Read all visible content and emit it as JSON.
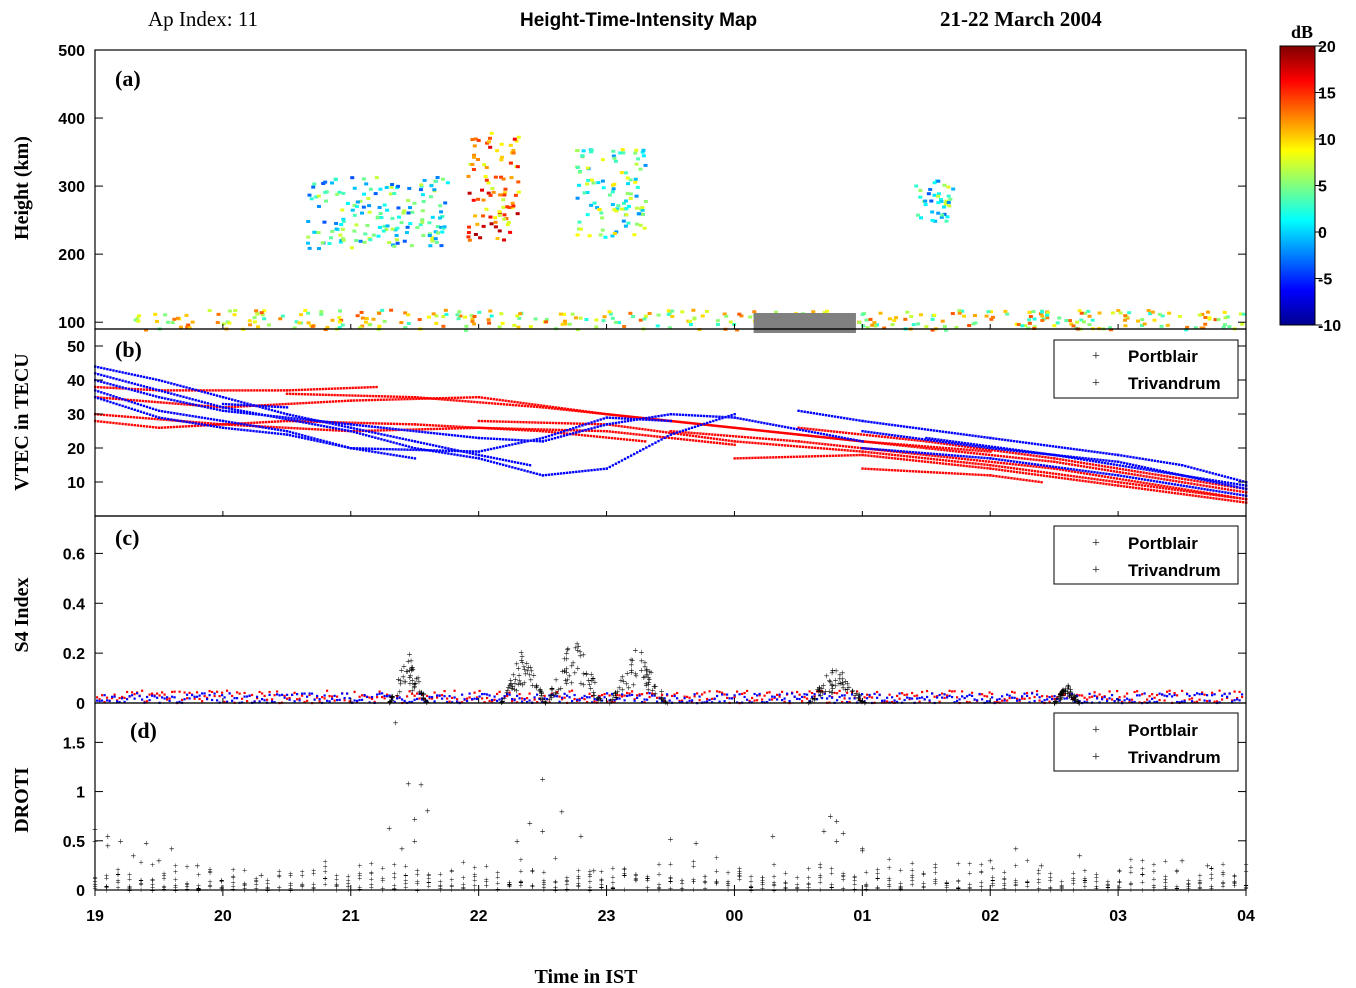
{
  "header": {
    "ap_index": "Ap Index: 11",
    "title": "Height-Time-Intensity Map",
    "date": "21-22 March 2004"
  },
  "xlabel": "Time in IST",
  "colorbar": {
    "unit": "dB",
    "ticks": [
      "20",
      "15",
      "10",
      "5",
      "0",
      "-5",
      "-10"
    ]
  },
  "colors": {
    "portblair": "#ff0000",
    "trivandrum": "#0000ff",
    "data_gap": "#808080"
  },
  "chart_data": [
    {
      "id": "a",
      "panel_label": "(a)",
      "type": "heatmap",
      "ylabel": "Height (km)",
      "ylim": [
        90,
        500
      ],
      "yticks": [
        "500",
        "400",
        "300",
        "200",
        "100"
      ],
      "xticks": [
        "19",
        "20",
        "21",
        "22",
        "23",
        "00",
        "01",
        "02",
        "03",
        "04"
      ],
      "data_gap_hours": [
        0.15,
        0.95
      ],
      "colorscale": {
        "min": -10,
        "max": 20,
        "unit": "dB"
      },
      "blobs": [
        {
          "t_start": 20.65,
          "t_end": 21.75,
          "h_low": 210,
          "h_high": 315,
          "level": 2
        },
        {
          "t_start": 21.9,
          "t_end": 22.3,
          "h_low": 220,
          "h_high": 380,
          "level": 13
        },
        {
          "t_start": 22.75,
          "t_end": 23.3,
          "h_low": 225,
          "h_high": 360,
          "level": 4
        },
        {
          "t_start": 1.4,
          "t_end": 1.7,
          "h_low": 250,
          "h_high": 310,
          "level": 2
        },
        {
          "t_start": 19.3,
          "t_end": 4.0,
          "h_low": 90,
          "h_high": 120,
          "level": 8
        }
      ]
    },
    {
      "id": "b",
      "panel_label": "(b)",
      "type": "scatter",
      "ylabel": "VTEC in TECU",
      "ylim": [
        0,
        55
      ],
      "yticks": [
        "50",
        "40",
        "30",
        "20",
        "10"
      ],
      "legend": [
        "Portblair",
        "Trivandrum"
      ],
      "series": [
        {
          "name": "Portblair",
          "tracks": [
            [
              [
                19.0,
                28
              ],
              [
                19.5,
                26
              ],
              [
                20.5,
                28
              ],
              [
                21.5,
                27
              ],
              [
                22.5,
                25
              ],
              [
                23.3,
                22
              ]
            ],
            [
              [
                19.0,
                30
              ],
              [
                20.0,
                27
              ],
              [
                21.0,
                25
              ],
              [
                22.0,
                26
              ],
              [
                23.0,
                25
              ],
              [
                0.0,
                21
              ]
            ],
            [
              [
                19.0,
                38
              ],
              [
                19.5,
                37
              ],
              [
                20.5,
                37
              ],
              [
                21.2,
                38
              ]
            ],
            [
              [
                19.0,
                35
              ],
              [
                20.0,
                32
              ],
              [
                21.0,
                34
              ],
              [
                22.0,
                35
              ],
              [
                23.0,
                30
              ],
              [
                0.0,
                26
              ],
              [
                1.0,
                22
              ],
              [
                2.0,
                19
              ]
            ],
            [
              [
                20.5,
                36
              ],
              [
                21.5,
                35
              ],
              [
                22.5,
                32
              ],
              [
                23.5,
                28
              ],
              [
                0.5,
                24
              ],
              [
                1.5,
                20
              ],
              [
                2.5,
                16
              ],
              [
                3.5,
                10
              ],
              [
                4.0,
                7
              ]
            ],
            [
              [
                22.0,
                28
              ],
              [
                23.0,
                27
              ],
              [
                0.0,
                22
              ],
              [
                1.0,
                19
              ],
              [
                2.0,
                15
              ],
              [
                3.0,
                10
              ],
              [
                4.0,
                5
              ]
            ],
            [
              [
                23.5,
                25
              ],
              [
                0.5,
                22
              ],
              [
                1.5,
                18
              ],
              [
                2.5,
                14
              ],
              [
                3.5,
                8
              ],
              [
                4.0,
                5
              ]
            ],
            [
              [
                0.5,
                26
              ],
              [
                1.5,
                22
              ],
              [
                2.5,
                17
              ],
              [
                3.5,
                11
              ],
              [
                4.0,
                8
              ]
            ],
            [
              [
                0.0,
                17
              ],
              [
                1.0,
                18
              ],
              [
                2.0,
                14
              ],
              [
                3.0,
                9
              ],
              [
                4.0,
                4
              ]
            ],
            [
              [
                1.0,
                14
              ],
              [
                2.0,
                12
              ],
              [
                2.4,
                10
              ]
            ]
          ]
        },
        {
          "name": "Trivandrum",
          "tracks": [
            [
              [
                19.0,
                44
              ],
              [
                19.5,
                40
              ],
              [
                20.0,
                35
              ],
              [
                20.5,
                30
              ],
              [
                21.0,
                26
              ],
              [
                21.5,
                22
              ],
              [
                22.0,
                18
              ],
              [
                22.4,
                15
              ]
            ],
            [
              [
                19.0,
                42
              ],
              [
                19.5,
                37
              ],
              [
                20.0,
                32
              ],
              [
                21.0,
                25
              ],
              [
                21.5,
                20
              ],
              [
                22.0,
                17
              ],
              [
                22.5,
                12
              ],
              [
                23.0,
                14
              ],
              [
                23.5,
                24
              ],
              [
                0.0,
                30
              ]
            ],
            [
              [
                19.0,
                40
              ],
              [
                19.5,
                35
              ],
              [
                20.0,
                31
              ],
              [
                21.0,
                27
              ],
              [
                22.0,
                23
              ],
              [
                22.5,
                22
              ],
              [
                23.0,
                27
              ],
              [
                23.5,
                30
              ],
              [
                0.0,
                29
              ],
              [
                1.0,
                22
              ]
            ],
            [
              [
                19.0,
                37
              ],
              [
                19.5,
                31
              ],
              [
                20.0,
                28
              ],
              [
                20.5,
                25
              ],
              [
                21.0,
                20
              ],
              [
                22.0,
                19
              ],
              [
                22.5,
                23
              ],
              [
                23.0,
                29
              ],
              [
                23.5,
                28
              ]
            ],
            [
              [
                19.0,
                35
              ],
              [
                19.5,
                29
              ],
              [
                20.0,
                26
              ],
              [
                20.5,
                24
              ],
              [
                21.0,
                20
              ],
              [
                21.5,
                17
              ]
            ],
            [
              [
                20.0,
                33
              ],
              [
                20.5,
                32
              ]
            ],
            [
              [
                0.5,
                31
              ],
              [
                1.0,
                28
              ],
              [
                2.0,
                23
              ],
              [
                3.0,
                18
              ],
              [
                3.5,
                15
              ],
              [
                4.0,
                10
              ]
            ],
            [
              [
                1.0,
                25
              ],
              [
                2.0,
                20
              ],
              [
                3.0,
                16
              ],
              [
                4.0,
                8
              ]
            ],
            [
              [
                1.5,
                23
              ],
              [
                2.5,
                18
              ],
              [
                3.5,
                12
              ],
              [
                4.0,
                9
              ]
            ],
            [
              [
                1.0,
                20
              ],
              [
                2.0,
                17
              ],
              [
                3.0,
                12
              ],
              [
                4.0,
                6
              ]
            ]
          ]
        }
      ]
    },
    {
      "id": "c",
      "panel_label": "(c)",
      "type": "scatter",
      "ylabel": "S4 Index",
      "ylim": [
        0,
        0.75
      ],
      "yticks": [
        "0.6",
        "0.4",
        "0.2",
        "0"
      ],
      "legend": [
        "Portblair",
        "Trivandrum"
      ],
      "series": [
        {
          "name": "Portblair",
          "baseline": [
            0.0,
            0.05
          ],
          "bursts": []
        },
        {
          "name": "Trivandrum",
          "baseline": [
            0.0,
            0.04
          ],
          "bursts": [
            {
              "center": 21.45,
              "width": 0.3,
              "peak": 0.21
            },
            {
              "center": 22.35,
              "width": 0.35,
              "peak": 0.23
            },
            {
              "center": 22.75,
              "width": 0.45,
              "peak": 0.29
            },
            {
              "center": 23.25,
              "width": 0.45,
              "peak": 0.25
            },
            {
              "center": 0.8,
              "width": 0.45,
              "peak": 0.17
            },
            {
              "center": 2.6,
              "width": 0.2,
              "peak": 0.08
            }
          ]
        }
      ]
    },
    {
      "id": "d",
      "panel_label": "(d)",
      "type": "scatter",
      "ylabel": "DROTI",
      "ylim": [
        0,
        1.9
      ],
      "yticks": [
        "1.5",
        "1",
        "0.5",
        "0"
      ],
      "xlabel": "Time in IST",
      "xticks": [
        "19",
        "20",
        "21",
        "22",
        "23",
        "00",
        "01",
        "02",
        "03",
        "04"
      ],
      "legend": [
        "Portblair",
        "Trivandrum"
      ],
      "series": [
        {
          "name": "Portblair",
          "points": [
            [
              19.0,
              0.5
            ],
            [
              19.1,
              0.45
            ],
            [
              19.3,
              0.35
            ],
            [
              19.5,
              0.3
            ],
            [
              19.8,
              0.25
            ],
            [
              20.3,
              0.15
            ],
            [
              21.4,
              0.42
            ],
            [
              21.5,
              0.5
            ],
            [
              22.9,
              0.2
            ],
            [
              23.5,
              0.52
            ],
            [
              0.8,
              0.5
            ],
            [
              0.85,
              0.58
            ],
            [
              1.0,
              0.4
            ],
            [
              2.0,
              0.3
            ],
            [
              2.4,
              0.25
            ]
          ]
        },
        {
          "name": "Trivandrum",
          "points": [
            [
              19.0,
              0.62
            ],
            [
              19.1,
              0.55
            ],
            [
              19.2,
              0.5
            ],
            [
              19.4,
              0.48
            ],
            [
              19.6,
              0.42
            ],
            [
              21.35,
              1.7
            ],
            [
              21.45,
              1.08
            ],
            [
              21.55,
              1.07
            ],
            [
              21.6,
              0.81
            ],
            [
              21.5,
              0.72
            ],
            [
              21.3,
              0.63
            ],
            [
              22.5,
              1.13
            ],
            [
              22.65,
              0.8
            ],
            [
              22.4,
              0.68
            ],
            [
              22.5,
              0.6
            ],
            [
              22.3,
              0.5
            ],
            [
              22.8,
              0.55
            ],
            [
              23.7,
              0.48
            ],
            [
              0.3,
              0.55
            ],
            [
              0.75,
              0.75
            ],
            [
              0.8,
              0.7
            ],
            [
              0.7,
              0.6
            ],
            [
              1.0,
              0.42
            ],
            [
              2.2,
              0.42
            ],
            [
              2.7,
              0.35
            ],
            [
              3.5,
              0.3
            ],
            [
              3.7,
              0.25
            ]
          ]
        }
      ]
    }
  ]
}
